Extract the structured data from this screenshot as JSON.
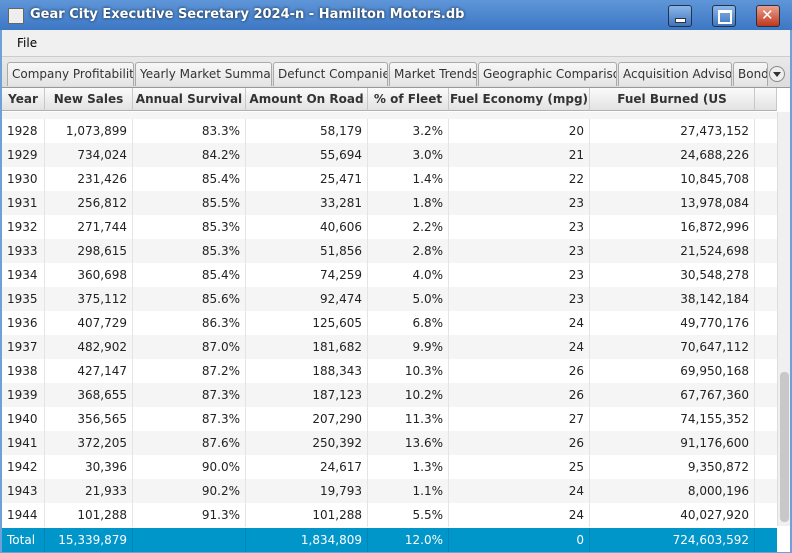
{
  "window": {
    "title": "Gear City Executive Secretary 2024-n - Hamilton Motors.db"
  },
  "menu": [
    "File"
  ],
  "tabs": [
    "Company Profitability",
    "Yearly Market Summary",
    "Defunct Companies",
    "Market Trends",
    "Geographic Comparison",
    "Acquisition Advisor",
    "Bond"
  ],
  "table": {
    "columns": [
      "Year",
      "New Sales",
      "Annual Survival",
      "Amount On Road",
      "% of Fleet",
      "Fuel Economy (mpg)",
      "Fuel Burned (US Gallons)"
    ],
    "rows": [
      [
        "1928",
        "1,073,899",
        "83.3%",
        "58,179",
        "3.2%",
        "20",
        "27,473,152"
      ],
      [
        "1929",
        "734,024",
        "84.2%",
        "55,694",
        "3.0%",
        "21",
        "24,688,226"
      ],
      [
        "1930",
        "231,426",
        "85.4%",
        "25,471",
        "1.4%",
        "22",
        "10,845,708"
      ],
      [
        "1931",
        "256,812",
        "85.5%",
        "33,281",
        "1.8%",
        "23",
        "13,978,084"
      ],
      [
        "1932",
        "271,744",
        "85.3%",
        "40,606",
        "2.2%",
        "23",
        "16,872,996"
      ],
      [
        "1933",
        "298,615",
        "85.3%",
        "51,856",
        "2.8%",
        "23",
        "21,524,698"
      ],
      [
        "1934",
        "360,698",
        "85.4%",
        "74,259",
        "4.0%",
        "23",
        "30,548,278"
      ],
      [
        "1935",
        "375,112",
        "85.6%",
        "92,474",
        "5.0%",
        "23",
        "38,142,184"
      ],
      [
        "1936",
        "407,729",
        "86.3%",
        "125,605",
        "6.8%",
        "24",
        "49,770,176"
      ],
      [
        "1937",
        "482,902",
        "87.0%",
        "181,682",
        "9.9%",
        "24",
        "70,647,112"
      ],
      [
        "1938",
        "427,147",
        "87.2%",
        "188,343",
        "10.3%",
        "26",
        "69,950,168"
      ],
      [
        "1939",
        "368,655",
        "87.3%",
        "187,123",
        "10.2%",
        "26",
        "67,767,360"
      ],
      [
        "1940",
        "356,565",
        "87.3%",
        "207,290",
        "11.3%",
        "27",
        "74,155,352"
      ],
      [
        "1941",
        "372,205",
        "87.6%",
        "250,392",
        "13.6%",
        "26",
        "91,176,600"
      ],
      [
        "1942",
        "30,396",
        "90.0%",
        "24,617",
        "1.3%",
        "25",
        "9,350,872"
      ],
      [
        "1943",
        "21,933",
        "90.2%",
        "19,793",
        "1.1%",
        "24",
        "8,000,196"
      ],
      [
        "1944",
        "101,288",
        "91.3%",
        "101,288",
        "5.5%",
        "24",
        "40,027,920"
      ]
    ],
    "total": {
      "label": "Total",
      "new_sales": "15,339,879",
      "amount_on_road": "1,834,809",
      "pct_fleet": "12.0%",
      "fuel_economy": "0",
      "fuel_burned": "724,603,592"
    }
  }
}
